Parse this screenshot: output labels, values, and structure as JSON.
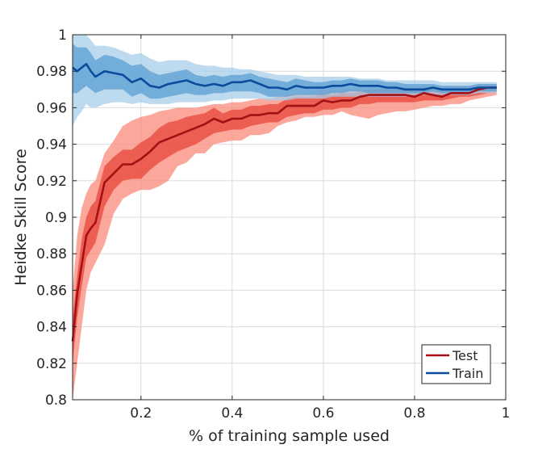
{
  "chart_data": {
    "type": "line",
    "xlabel": "% of training sample used",
    "ylabel": "Heidke Skill Score",
    "xlim": [
      0.05,
      1.0
    ],
    "ylim": [
      0.8,
      1.0
    ],
    "xticks": [
      0.2,
      0.4,
      0.6,
      0.8,
      1.0
    ],
    "xtick_labels": [
      "0.2",
      "0.4",
      "0.6",
      "0.8",
      "1"
    ],
    "yticks": [
      0.8,
      0.82,
      0.84,
      0.86,
      0.88,
      0.9,
      0.92,
      0.94,
      0.96,
      0.98,
      1.0
    ],
    "ytick_labels": [
      "0.8",
      "0.82",
      "0.84",
      "0.86",
      "0.88",
      "0.9",
      "0.92",
      "0.94",
      "0.96",
      "0.98",
      "1"
    ],
    "grid": true,
    "legend_position": "bottom-right",
    "x": [
      0.05,
      0.06,
      0.07,
      0.08,
      0.09,
      0.1,
      0.12,
      0.14,
      0.16,
      0.18,
      0.2,
      0.22,
      0.24,
      0.26,
      0.28,
      0.3,
      0.32,
      0.34,
      0.36,
      0.38,
      0.4,
      0.42,
      0.44,
      0.46,
      0.48,
      0.5,
      0.52,
      0.54,
      0.56,
      0.58,
      0.6,
      0.62,
      0.64,
      0.66,
      0.68,
      0.7,
      0.72,
      0.74,
      0.76,
      0.78,
      0.8,
      0.82,
      0.84,
      0.86,
      0.88,
      0.9,
      0.92,
      0.94,
      0.96,
      0.98
    ],
    "series": [
      {
        "name": "Test",
        "color": "#a50f15",
        "inner_band_color": "#e8463a",
        "outer_band_color": "#fb8a7a",
        "values": [
          0.832,
          0.858,
          0.874,
          0.89,
          0.894,
          0.897,
          0.919,
          0.924,
          0.929,
          0.929,
          0.932,
          0.936,
          0.941,
          0.943,
          0.945,
          0.947,
          0.949,
          0.951,
          0.954,
          0.952,
          0.954,
          0.954,
          0.956,
          0.956,
          0.957,
          0.957,
          0.961,
          0.961,
          0.961,
          0.961,
          0.964,
          0.963,
          0.964,
          0.964,
          0.966,
          0.967,
          0.967,
          0.967,
          0.967,
          0.967,
          0.966,
          0.968,
          0.967,
          0.966,
          0.968,
          0.968,
          0.968,
          0.97,
          0.971,
          0.971
        ],
        "inner_low": [
          0.82,
          0.845,
          0.862,
          0.878,
          0.882,
          0.886,
          0.906,
          0.915,
          0.92,
          0.921,
          0.921,
          0.926,
          0.93,
          0.933,
          0.936,
          0.938,
          0.94,
          0.943,
          0.946,
          0.947,
          0.948,
          0.948,
          0.95,
          0.951,
          0.952,
          0.952,
          0.955,
          0.956,
          0.957,
          0.957,
          0.959,
          0.959,
          0.96,
          0.96,
          0.962,
          0.962,
          0.963,
          0.963,
          0.963,
          0.963,
          0.963,
          0.964,
          0.964,
          0.964,
          0.965,
          0.966,
          0.966,
          0.967,
          0.968,
          0.969
        ],
        "inner_high": [
          0.845,
          0.868,
          0.888,
          0.9,
          0.906,
          0.909,
          0.928,
          0.933,
          0.937,
          0.937,
          0.941,
          0.944,
          0.949,
          0.952,
          0.953,
          0.955,
          0.956,
          0.957,
          0.96,
          0.957,
          0.959,
          0.959,
          0.961,
          0.961,
          0.962,
          0.962,
          0.965,
          0.966,
          0.966,
          0.966,
          0.968,
          0.967,
          0.968,
          0.968,
          0.969,
          0.97,
          0.97,
          0.97,
          0.97,
          0.97,
          0.969,
          0.971,
          0.97,
          0.969,
          0.971,
          0.971,
          0.971,
          0.972,
          0.972,
          0.972
        ],
        "outer_low": [
          0.8,
          0.82,
          0.84,
          0.86,
          0.87,
          0.875,
          0.885,
          0.902,
          0.91,
          0.913,
          0.915,
          0.915,
          0.917,
          0.92,
          0.928,
          0.93,
          0.935,
          0.935,
          0.94,
          0.941,
          0.942,
          0.942,
          0.945,
          0.945,
          0.946,
          0.95,
          0.952,
          0.953,
          0.955,
          0.955,
          0.956,
          0.956,
          0.958,
          0.956,
          0.955,
          0.954,
          0.956,
          0.957,
          0.958,
          0.958,
          0.959,
          0.96,
          0.961,
          0.961,
          0.962,
          0.962,
          0.964,
          0.965,
          0.966,
          0.967
        ],
        "outer_high": [
          0.86,
          0.89,
          0.905,
          0.913,
          0.918,
          0.92,
          0.935,
          0.942,
          0.95,
          0.953,
          0.955,
          0.956,
          0.958,
          0.959,
          0.96,
          0.96,
          0.96,
          0.961,
          0.962,
          0.962,
          0.963,
          0.963,
          0.964,
          0.965,
          0.965,
          0.966,
          0.967,
          0.968,
          0.968,
          0.969,
          0.97,
          0.97,
          0.97,
          0.97,
          0.97,
          0.97,
          0.97,
          0.971,
          0.971,
          0.971,
          0.971,
          0.972,
          0.972,
          0.972,
          0.972,
          0.972,
          0.972,
          0.973,
          0.973,
          0.973
        ]
      },
      {
        "name": "Train",
        "color": "#0b4c9c",
        "inner_band_color": "#5b9fd3",
        "outer_band_color": "#a7cdea",
        "values": [
          0.982,
          0.98,
          0.982,
          0.984,
          0.98,
          0.977,
          0.98,
          0.979,
          0.978,
          0.974,
          0.976,
          0.972,
          0.971,
          0.973,
          0.974,
          0.975,
          0.973,
          0.972,
          0.973,
          0.972,
          0.974,
          0.974,
          0.975,
          0.973,
          0.971,
          0.971,
          0.97,
          0.972,
          0.971,
          0.971,
          0.971,
          0.972,
          0.972,
          0.973,
          0.972,
          0.972,
          0.972,
          0.971,
          0.971,
          0.97,
          0.97,
          0.97,
          0.971,
          0.97,
          0.97,
          0.97,
          0.97,
          0.971,
          0.971,
          0.971
        ],
        "inner_low": [
          0.968,
          0.968,
          0.97,
          0.972,
          0.97,
          0.968,
          0.97,
          0.97,
          0.97,
          0.966,
          0.968,
          0.965,
          0.965,
          0.966,
          0.967,
          0.968,
          0.967,
          0.967,
          0.968,
          0.968,
          0.969,
          0.969,
          0.969,
          0.968,
          0.966,
          0.966,
          0.966,
          0.967,
          0.967,
          0.967,
          0.967,
          0.968,
          0.968,
          0.969,
          0.969,
          0.968,
          0.968,
          0.968,
          0.968,
          0.968,
          0.968,
          0.968,
          0.969,
          0.968,
          0.968,
          0.968,
          0.968,
          0.969,
          0.969,
          0.969
        ],
        "inner_high": [
          0.995,
          0.993,
          0.993,
          0.993,
          0.99,
          0.986,
          0.989,
          0.988,
          0.986,
          0.983,
          0.984,
          0.98,
          0.978,
          0.979,
          0.98,
          0.981,
          0.978,
          0.977,
          0.978,
          0.977,
          0.978,
          0.978,
          0.979,
          0.977,
          0.976,
          0.975,
          0.974,
          0.976,
          0.975,
          0.974,
          0.974,
          0.975,
          0.975,
          0.976,
          0.975,
          0.975,
          0.975,
          0.974,
          0.974,
          0.973,
          0.973,
          0.973,
          0.973,
          0.972,
          0.972,
          0.972,
          0.972,
          0.973,
          0.973,
          0.973
        ],
        "outer_low": [
          0.95,
          0.955,
          0.958,
          0.962,
          0.96,
          0.96,
          0.962,
          0.963,
          0.963,
          0.962,
          0.963,
          0.962,
          0.962,
          0.962,
          0.963,
          0.963,
          0.963,
          0.963,
          0.964,
          0.964,
          0.965,
          0.965,
          0.965,
          0.965,
          0.964,
          0.964,
          0.964,
          0.965,
          0.965,
          0.965,
          0.965,
          0.966,
          0.966,
          0.966,
          0.966,
          0.966,
          0.966,
          0.966,
          0.966,
          0.966,
          0.967,
          0.967,
          0.967,
          0.967,
          0.967,
          0.967,
          0.967,
          0.968,
          0.968,
          0.968
        ],
        "outer_high": [
          1.0,
          1.0,
          1.0,
          1.0,
          0.997,
          0.994,
          0.994,
          0.993,
          0.991,
          0.989,
          0.99,
          0.987,
          0.985,
          0.986,
          0.986,
          0.986,
          0.984,
          0.983,
          0.983,
          0.982,
          0.982,
          0.981,
          0.981,
          0.98,
          0.979,
          0.978,
          0.978,
          0.978,
          0.977,
          0.977,
          0.977,
          0.977,
          0.977,
          0.977,
          0.976,
          0.976,
          0.976,
          0.975,
          0.975,
          0.975,
          0.975,
          0.975,
          0.975,
          0.974,
          0.974,
          0.974,
          0.974,
          0.974,
          0.974,
          0.974
        ]
      }
    ]
  }
}
